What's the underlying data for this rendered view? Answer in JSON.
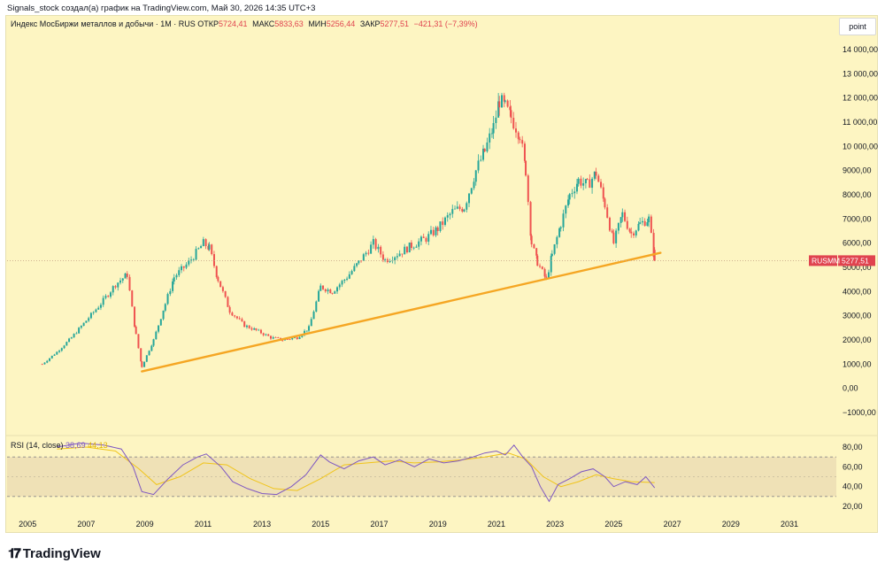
{
  "header": {
    "text": "Signals_stock создал(а) график на TradingView.com, Май 30, 2026 14:35 UTC+3"
  },
  "legend": {
    "title": "Индекс МосБиржи металлов и добычи · 1M · RUS",
    "open_label": "ОТКР",
    "open_value": "5724,41",
    "high_label": "МАКС",
    "high_value": "5833,63",
    "low_label": "МИН",
    "low_value": "5256,44",
    "close_label": "ЗАКР",
    "close_value": "5277,51",
    "change": "−421,31 (−7,39%)"
  },
  "toolbar": {
    "scale_button": "point"
  },
  "price_tag": {
    "symbol": "RUSMM",
    "value": "5277,51"
  },
  "rsi_legend": {
    "title": "RSI (14, close)",
    "rsi_value": "38,69",
    "ma_value": "44,13"
  },
  "footer": {
    "brand": "TradingView"
  },
  "colors": {
    "background": "#fdf5c2",
    "up_candle": "#26a69a",
    "down_candle": "#ef5350",
    "trendline": "#f5a623",
    "rsi_line": "#7e57c2",
    "rsi_ma": "#f0c419",
    "rsi_band": "#e8d9b0",
    "price_tag": "#e0434f"
  },
  "chart_data": [
    {
      "type": "candlestick",
      "title": "Индекс МосБиржи металлов и добычи · 1M · RUS",
      "y_ticks": [
        "14 000,00",
        "13 000,00",
        "12 000,00",
        "11 000,00",
        "10 000,00",
        "9000,00",
        "8000,00",
        "7000,00",
        "6000,00",
        "5000,00",
        "4000,00",
        "3000,00",
        "2000,00",
        "1000,00",
        "0,00",
        "−1000,00"
      ],
      "y_tick_values": [
        14000,
        13000,
        12000,
        11000,
        10000,
        9000,
        8000,
        7000,
        6000,
        5000,
        4000,
        3000,
        2000,
        1000,
        0,
        -1000
      ],
      "ylim": [
        -1000,
        14500
      ],
      "x_ticks": [
        "2005",
        "2007",
        "2009",
        "2011",
        "2013",
        "2015",
        "2017",
        "2019",
        "2021",
        "2023",
        "2025",
        "2027",
        "2029",
        "2031"
      ],
      "x_tick_values": [
        2005,
        2007,
        2009,
        2011,
        2013,
        2015,
        2017,
        2019,
        2021,
        2023,
        2025,
        2027,
        2029,
        2031
      ],
      "xlim": [
        2004.3,
        2032.6
      ],
      "series": [
        {
          "name": "RUSMM",
          "x": [
            2005.5,
            2006.0,
            2006.5,
            2007.0,
            2007.5,
            2008.0,
            2008.4,
            2008.7,
            2008.9,
            2009.3,
            2009.7,
            2010.0,
            2010.5,
            2011.0,
            2011.2,
            2011.5,
            2011.9,
            2012.4,
            2012.8,
            2013.3,
            2013.7,
            2014.2,
            2014.6,
            2015.0,
            2015.4,
            2015.9,
            2016.3,
            2016.8,
            2017.2,
            2017.7,
            2018.1,
            2018.6,
            2019.0,
            2019.5,
            2019.9,
            2020.3,
            2020.6,
            2020.9,
            2021.1,
            2021.3,
            2021.5,
            2021.8,
            2022.0,
            2022.2,
            2022.4,
            2022.7,
            2022.9,
            2023.2,
            2023.5,
            2023.8,
            2024.1,
            2024.4,
            2024.7,
            2025.0,
            2025.3,
            2025.6,
            2025.9,
            2026.2,
            2026.4
          ],
          "y": [
            1000,
            1500,
            2100,
            2800,
            3500,
            4300,
            4700,
            2200,
            900,
            2000,
            3500,
            4600,
            5200,
            6000,
            5800,
            4500,
            3200,
            2600,
            2400,
            2100,
            2000,
            2100,
            2500,
            4200,
            4000,
            4600,
            5200,
            6000,
            5300,
            5600,
            5900,
            6200,
            6600,
            7300,
            7500,
            9000,
            9800,
            10800,
            11900,
            11600,
            11200,
            10500,
            9000,
            6000,
            5200,
            4500,
            5500,
            6800,
            8000,
            8600,
            8400,
            8900,
            7600,
            6000,
            7200,
            6400,
            6800,
            7000,
            5277
          ]
        },
        {
          "name": "trendline",
          "x": [
            2008.9,
            2026.6
          ],
          "y": [
            700,
            5600
          ]
        }
      ],
      "price_line": 5277.51
    },
    {
      "type": "line",
      "title": "RSI (14, close)",
      "y_ticks": [
        "80,00",
        "60,00",
        "40,00",
        "20,00"
      ],
      "y_tick_values": [
        80,
        60,
        40,
        20
      ],
      "band": [
        30,
        70
      ],
      "ylim": [
        15,
        90
      ],
      "series": [
        {
          "name": "RSI",
          "x": [
            2006.0,
            2006.8,
            2007.6,
            2008.2,
            2008.6,
            2008.9,
            2009.3,
            2009.8,
            2010.3,
            2010.8,
            2011.1,
            2011.6,
            2012.0,
            2012.5,
            2013.0,
            2013.5,
            2014.0,
            2014.5,
            2015.0,
            2015.3,
            2015.8,
            2016.3,
            2016.8,
            2017.2,
            2017.7,
            2018.2,
            2018.7,
            2019.2,
            2019.7,
            2020.2,
            2020.6,
            2021.0,
            2021.3,
            2021.6,
            2021.9,
            2022.2,
            2022.5,
            2022.8,
            2023.1,
            2023.5,
            2023.9,
            2024.3,
            2024.7,
            2025.0,
            2025.4,
            2025.8,
            2026.1,
            2026.4
          ],
          "y": [
            80,
            84,
            82,
            78,
            60,
            35,
            32,
            48,
            62,
            70,
            73,
            60,
            45,
            38,
            33,
            32,
            40,
            52,
            72,
            65,
            58,
            66,
            70,
            62,
            67,
            60,
            68,
            64,
            66,
            70,
            74,
            76,
            72,
            82,
            70,
            60,
            40,
            25,
            42,
            48,
            55,
            58,
            50,
            40,
            45,
            42,
            50,
            38.69
          ]
        },
        {
          "name": "MA",
          "x": [
            2006.0,
            2007.0,
            2008.0,
            2008.8,
            2009.4,
            2010.2,
            2011.0,
            2011.8,
            2012.6,
            2013.4,
            2014.2,
            2015.0,
            2015.8,
            2016.6,
            2017.4,
            2018.2,
            2019.0,
            2019.8,
            2020.6,
            2021.4,
            2022.0,
            2022.6,
            2023.2,
            2023.8,
            2024.4,
            2025.0,
            2025.6,
            2026.4
          ],
          "y": [
            78,
            80,
            76,
            58,
            42,
            50,
            64,
            62,
            48,
            38,
            36,
            48,
            62,
            64,
            66,
            64,
            65,
            67,
            70,
            74,
            68,
            50,
            40,
            45,
            52,
            48,
            45,
            44.13
          ]
        }
      ]
    }
  ]
}
